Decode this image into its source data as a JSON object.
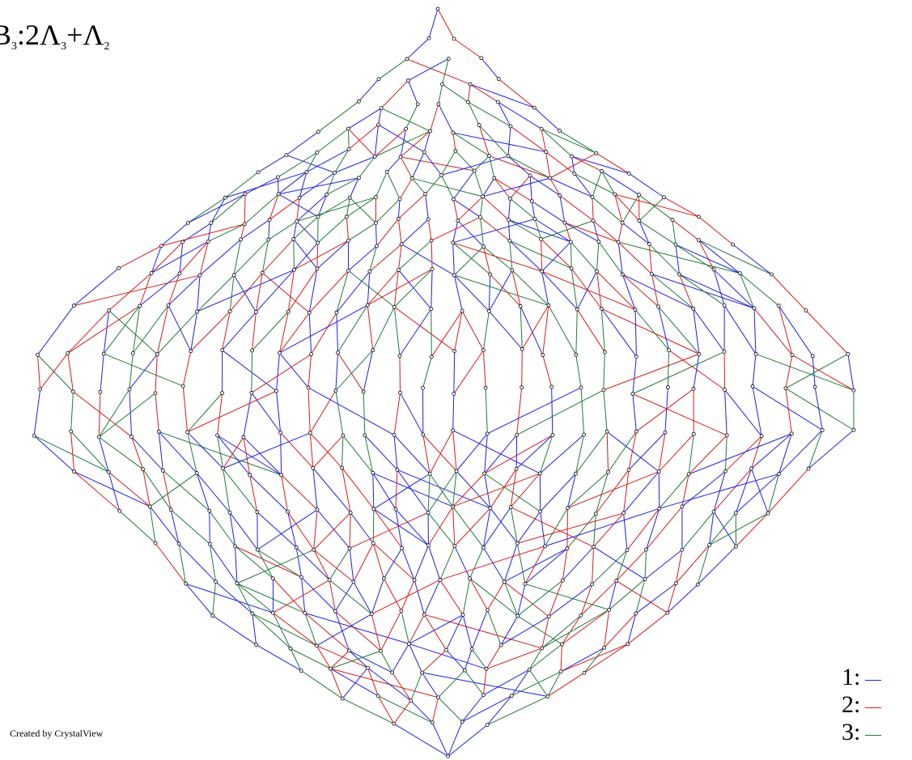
{
  "title": {
    "prefix": "B",
    "prefix_sub": "3",
    "sep": ":2Λ",
    "lambda1_sub": "3",
    "plus": "+Λ",
    "lambda2_sub": "2"
  },
  "credit": "Created by CrystalView",
  "legend": [
    {
      "label": "1:",
      "color": "#1f1fe6"
    },
    {
      "label": "2:",
      "color": "#d81b1b"
    },
    {
      "label": "3:",
      "color": "#1f7a3a"
    }
  ],
  "colors": {
    "edge_1": "#1f1fe6",
    "edge_2": "#d81b1b",
    "edge_3": "#1f7a3a",
    "node_fill": "#ffffff",
    "node_stroke": "#000000"
  }
}
